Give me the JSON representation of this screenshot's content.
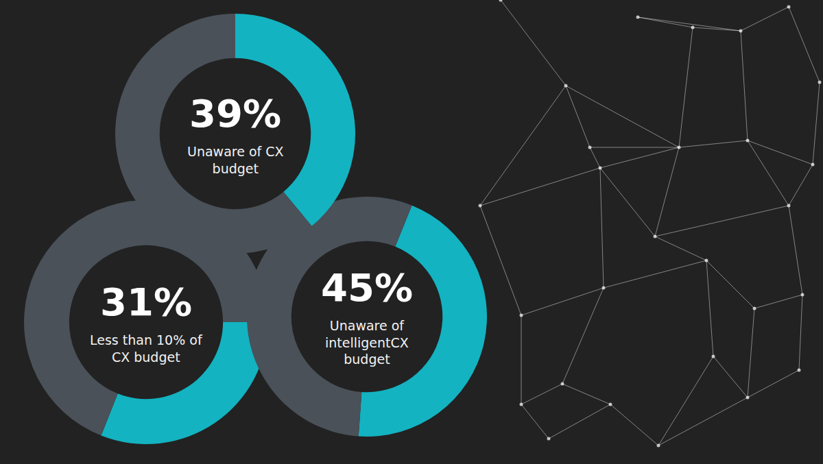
{
  "chart_data": [
    {
      "type": "donut",
      "title": "Unaware of CX budget",
      "values": [
        39
      ],
      "value_labels": [
        "39%"
      ],
      "ylim": [
        0,
        100
      ],
      "color": "#13b3c1",
      "data_labels": true
    },
    {
      "type": "donut",
      "title": "Less than 10% of CX budget",
      "values": [
        31
      ],
      "value_labels": [
        "31%"
      ],
      "ylim": [
        0,
        100
      ],
      "color": "#13b3c1",
      "data_labels": true
    },
    {
      "type": "donut",
      "title": "Unaware of intelligentCX budget",
      "values": [
        45
      ],
      "value_labels": [
        "45%"
      ],
      "ylim": [
        0,
        100
      ],
      "color": "#13b3c1",
      "data_labels": true
    }
  ]
}
